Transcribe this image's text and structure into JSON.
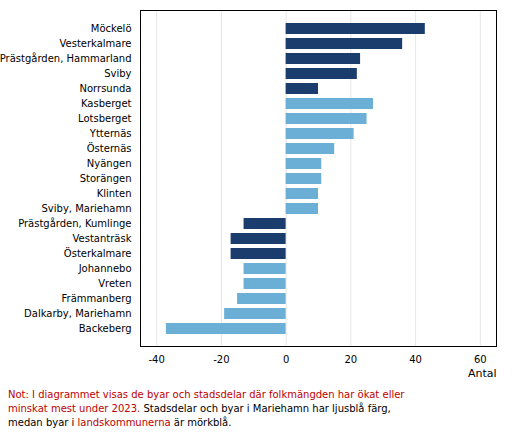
{
  "chart_data": {
    "type": "bar",
    "orientation": "horizontal",
    "categories": [
      "Möckelö",
      "Vesterkalmare",
      "Prästgården, Hammarland",
      "Sviby",
      "Norrsunda",
      "Kasberget",
      "Lotsberget",
      "Ytternäs",
      "Östernäs",
      "Nyängen",
      "Storängen",
      "Klinten",
      "Sviby, Mariehamn",
      "Prästgården, Kumlinge",
      "Vestanträsk",
      "Österkalmare",
      "Johannebo",
      "Vreten",
      "Främmanberg",
      "Dalkarby, Mariehamn",
      "Backeberg"
    ],
    "values": [
      43,
      36,
      23,
      22,
      10,
      27,
      25,
      21,
      15,
      11,
      11,
      10,
      10,
      -13,
      -17,
      -17,
      -13,
      -13,
      -15,
      -19,
      -37
    ],
    "colors": [
      "#1a3d6e",
      "#1a3d6e",
      "#1a3d6e",
      "#1a3d6e",
      "#1a3d6e",
      "#6baed6",
      "#6baed6",
      "#6baed6",
      "#6baed6",
      "#6baed6",
      "#6baed6",
      "#6baed6",
      "#6baed6",
      "#1a3d6e",
      "#1a3d6e",
      "#1a3d6e",
      "#6baed6",
      "#6baed6",
      "#6baed6",
      "#6baed6",
      "#6baed6"
    ],
    "xlim": [
      -45,
      65
    ],
    "xticks": [
      -40,
      -20,
      0,
      20,
      40,
      60
    ],
    "xlabel": "Antal",
    "grid": true,
    "annotations": [
      [
        {
          "text": "Not: ",
          "color": "#c00000"
        },
        {
          "text": "I diagrammet visas de byar och stadsdelar där folkmängden har ökat eller",
          "color": "#c00000"
        }
      ],
      [
        {
          "text": "minskat mest under 2023. ",
          "color": "#c00000"
        },
        {
          "text": "Stadsdelar och byar i Mariehamn har ljusblå färg,",
          "color": "#000000"
        }
      ],
      [
        {
          "text": "medan byar i ",
          "color": "#000000"
        },
        {
          "text": "landskommunerna",
          "color": "#c00000"
        },
        {
          "text": " är mörkblå.",
          "color": "#000000"
        }
      ]
    ]
  }
}
